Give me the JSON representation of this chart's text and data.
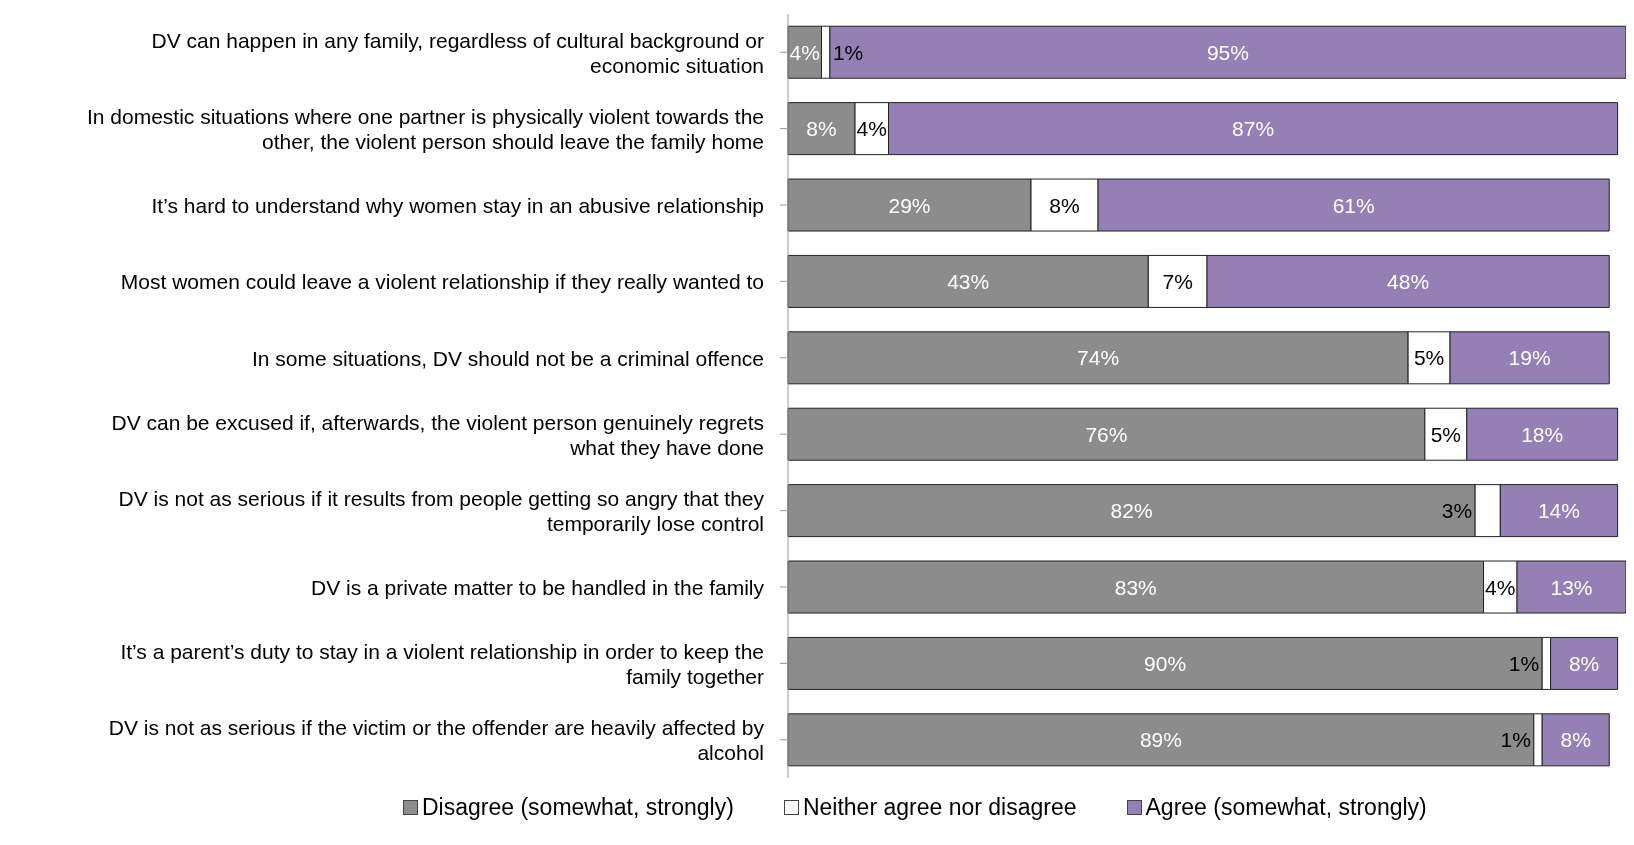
{
  "chart_data": {
    "type": "bar",
    "orientation": "horizontal",
    "stacked": true,
    "tick_labels": "y",
    "legend": "bottom",
    "categories": [
      "DV can happen in any family, regardless of cultural background or economic situation",
      "In domestic situations where one partner is physically violent towards the other, the violent person should leave the family home",
      "It’s hard to understand why women stay in an abusive relationship",
      "Most women could leave a violent relationship if they really wanted to",
      "In some situations, DV should not be a criminal offence",
      "DV can be excused if, afterwards, the violent person genuinely regrets what they have done",
      "DV is not as serious if it results from people getting so angry that they temporarily lose control",
      "DV is a private matter to be handled in the family",
      "It’s a parent’s duty to stay in a violent relationship in order to keep the family together",
      "DV is not as serious if the victim or the offender are heavily affected by alcohol"
    ],
    "series": [
      {
        "name": "Disagree (somewhat, strongly)",
        "color": "#8c8c8c",
        "values": [
          4,
          8,
          29,
          43,
          74,
          76,
          82,
          83,
          90,
          89
        ],
        "value_labels": [
          "4%",
          "8%",
          "29%",
          "43%",
          "74%",
          "76%",
          "82%",
          "83%",
          "90%",
          "89%"
        ]
      },
      {
        "name": "Neither agree nor disagree",
        "color": "#ffffff",
        "values": [
          1,
          4,
          8,
          7,
          5,
          5,
          3,
          4,
          1,
          1
        ],
        "value_labels": [
          "1%",
          "4%",
          "8%",
          "7%",
          "5%",
          "5%",
          "3%",
          "4%",
          "1%",
          "1%"
        ]
      },
      {
        "name": "Agree (somewhat, strongly)",
        "color": "#9580b6",
        "values": [
          95,
          87,
          61,
          48,
          19,
          18,
          14,
          13,
          8,
          8
        ],
        "value_labels": [
          "95%",
          "87%",
          "61%",
          "48%",
          "19%",
          "18%",
          "14%",
          "13%",
          "8%",
          "8%"
        ]
      }
    ]
  }
}
